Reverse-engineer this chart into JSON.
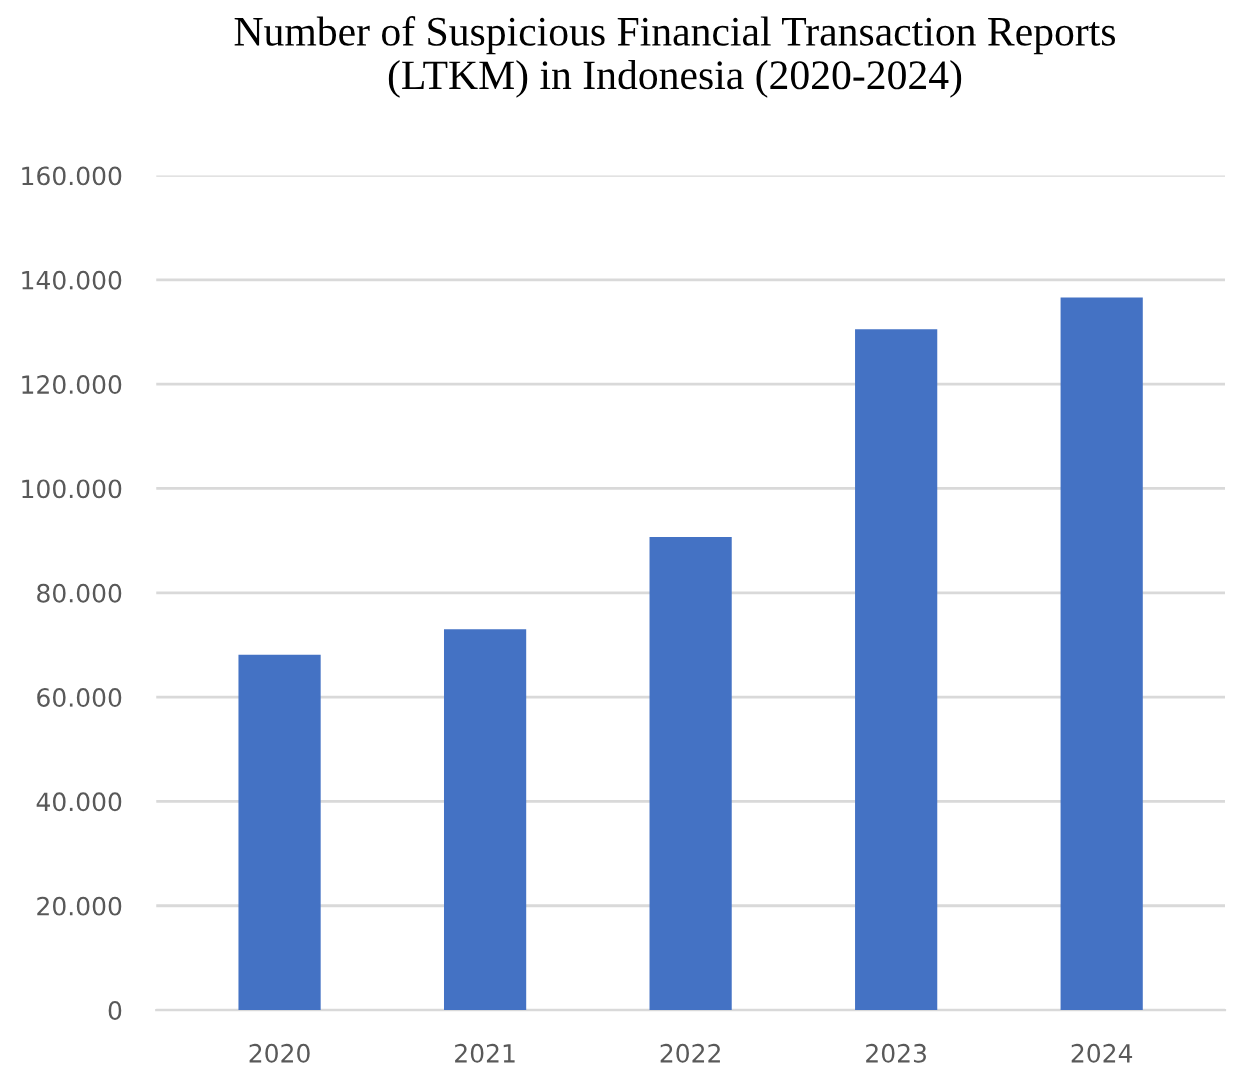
{
  "chart_data": {
    "type": "bar",
    "title": "Number of Suspicious Financial Transaction Reports\n(LTKM) in Indonesia (2020-2024)",
    "categories": [
      "2020",
      "2021",
      "2022",
      "2023",
      "2024"
    ],
    "values": [
      68100,
      73000,
      90700,
      130500,
      136600
    ],
    "color": "#4472c4",
    "ylim": [
      0,
      160000
    ],
    "yticks": [
      {
        "value": 0,
        "label": "0"
      },
      {
        "value": 20000,
        "label": "20.000"
      },
      {
        "value": 40000,
        "label": "40.000"
      },
      {
        "value": 60000,
        "label": "60.000"
      },
      {
        "value": 80000,
        "label": "80.000"
      },
      {
        "value": 100000,
        "label": "100.000"
      },
      {
        "value": 120000,
        "label": "120.000"
      },
      {
        "value": 140000,
        "label": "140.000"
      },
      {
        "value": 160000,
        "label": "160.000"
      }
    ],
    "grid": "y"
  }
}
